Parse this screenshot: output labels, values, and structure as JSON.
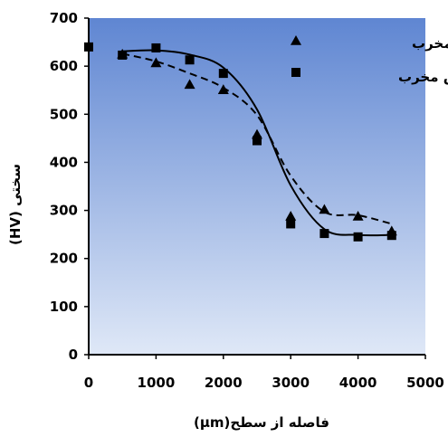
{
  "chart_data": {
    "type": "scatter",
    "title": "",
    "xlabel": "فاصله از سطح(μm)",
    "ylabel": "سختی (HV)",
    "xlim": [
      0,
      5000
    ],
    "ylim": [
      0,
      700
    ],
    "x_ticks": [
      "0",
      "1000",
      "2000",
      "3000",
      "4000",
      "5000"
    ],
    "y_ticks": [
      "0",
      "100",
      "200",
      "300",
      "400",
      "500",
      "600",
      "700"
    ],
    "legend_position": "top-right",
    "grid": false,
    "series": [
      {
        "name": "روش غیر مخرب",
        "marker": "triangle",
        "color": "#000000",
        "trend_line": "dashed",
        "points": [
          {
            "x": 500,
            "y": 625
          },
          {
            "x": 1000,
            "y": 607
          },
          {
            "x": 1500,
            "y": 562
          },
          {
            "x": 2000,
            "y": 551
          },
          {
            "x": 2500,
            "y": 458
          },
          {
            "x": 3000,
            "y": 288
          },
          {
            "x": 3500,
            "y": 302
          },
          {
            "x": 4000,
            "y": 288
          },
          {
            "x": 4500,
            "y": 257
          }
        ],
        "curve": [
          {
            "x": 500,
            "y": 626
          },
          {
            "x": 1000,
            "y": 610
          },
          {
            "x": 1500,
            "y": 585
          },
          {
            "x": 2000,
            "y": 555
          },
          {
            "x": 2500,
            "y": 498
          },
          {
            "x": 3000,
            "y": 372
          },
          {
            "x": 3500,
            "y": 297
          },
          {
            "x": 4000,
            "y": 290
          },
          {
            "x": 4500,
            "y": 272
          }
        ]
      },
      {
        "name": "روش مخرب",
        "marker": "square",
        "color": "#000000",
        "trend_line": "solid",
        "points": [
          {
            "x": 0,
            "y": 640
          },
          {
            "x": 500,
            "y": 623
          },
          {
            "x": 1000,
            "y": 638
          },
          {
            "x": 1500,
            "y": 613
          },
          {
            "x": 2000,
            "y": 585
          },
          {
            "x": 2500,
            "y": 445
          },
          {
            "x": 3000,
            "y": 272
          },
          {
            "x": 3500,
            "y": 252
          },
          {
            "x": 4000,
            "y": 245
          },
          {
            "x": 4500,
            "y": 248
          }
        ],
        "curve": [
          {
            "x": 500,
            "y": 631
          },
          {
            "x": 1000,
            "y": 633
          },
          {
            "x": 1500,
            "y": 624
          },
          {
            "x": 2000,
            "y": 597
          },
          {
            "x": 2500,
            "y": 510
          },
          {
            "x": 3000,
            "y": 352
          },
          {
            "x": 3500,
            "y": 261
          },
          {
            "x": 4000,
            "y": 249
          },
          {
            "x": 4500,
            "y": 249
          }
        ]
      }
    ],
    "colors": {
      "plot_bg_top": "#5f86d2",
      "plot_bg_bottom": "#dfe8f7",
      "axis": "#000000"
    }
  }
}
